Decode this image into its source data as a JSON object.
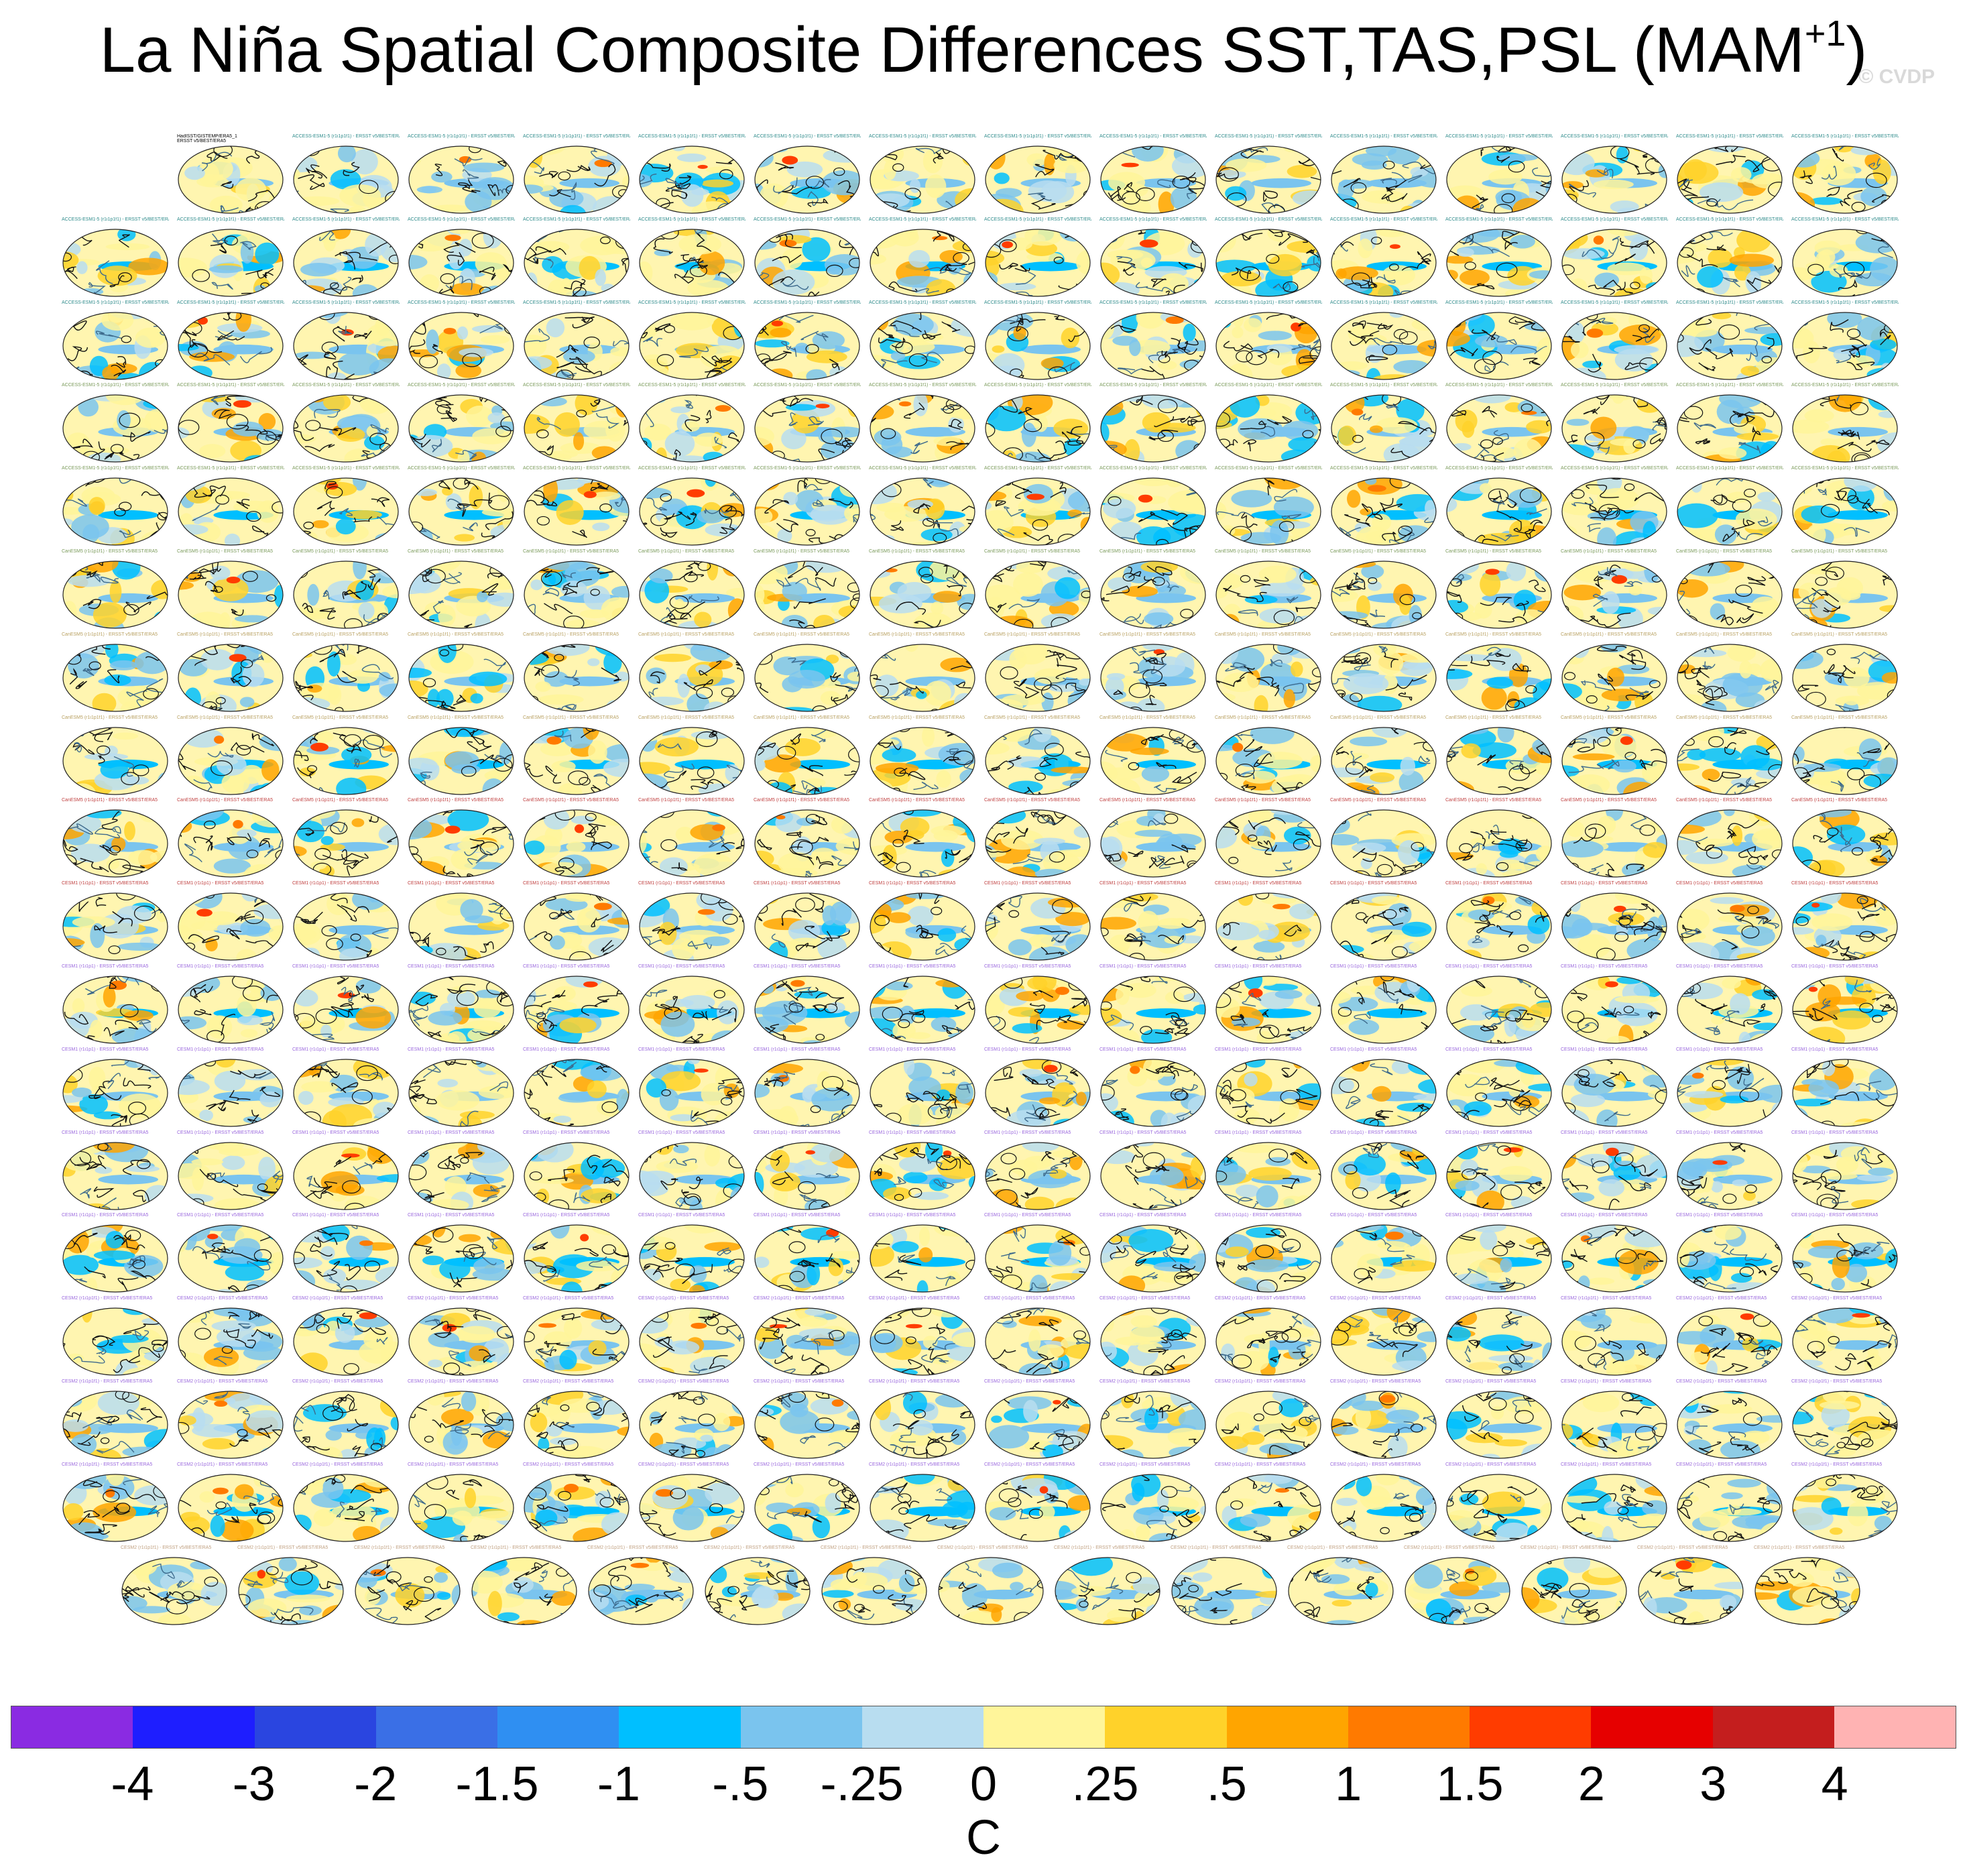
{
  "title": "La Niña Spatial Composite Differences SST,TAS,PSL (MAM",
  "title_superscript": "+1",
  "title_close": ")",
  "watermark": "© CVDP",
  "chart_data": {
    "type": "heatmap",
    "panel_grid": {
      "rows": 18,
      "columns": 16,
      "panels_per_row": [
        15,
        16,
        16,
        16,
        16,
        16,
        16,
        16,
        16,
        16,
        16,
        16,
        16,
        16,
        16,
        16,
        16,
        15
      ]
    },
    "first_panel_label": [
      "HadISST/GISTEMP/ERA5_1",
      "ERSST v5/BEST/ERA5"
    ],
    "panel_label_pattern": [
      "ACCESS-ESM1-5 (r1i1p1f1) - ERSST v5/BEST/ERA5",
      "CanESM5 (r1i1p1f1) - ERSST v5/BEST/ERA5",
      "CESM1 (r1i1p1) - ERSST v5/BEST/ERA5",
      "CESM2 (r1i1p1f1) - ERSST v5/BEST/ERA5"
    ],
    "colorbar": {
      "colors": [
        "#8a2be2",
        "#1e1eff",
        "#2a45e0",
        "#3a6fe6",
        "#2f8ff2",
        "#00bfff",
        "#7ac4ee",
        "#b8ddf0",
        "#fff59a",
        "#ffd22a",
        "#ffa500",
        "#ff7a00",
        "#ff3c00",
        "#e60000",
        "#c41e1e",
        "#ffb3b3"
      ],
      "ticks": [
        "-4",
        "-3",
        "-2",
        "-1.5",
        "-1",
        "-.5",
        "-.25",
        "0",
        ".25",
        ".5",
        "1",
        "1.5",
        "2",
        "3",
        "4"
      ],
      "units": "C"
    }
  }
}
